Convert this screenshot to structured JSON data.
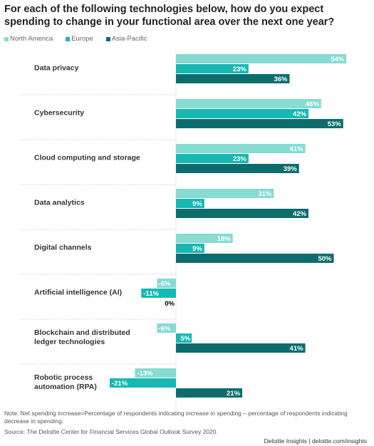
{
  "chart_data": {
    "type": "bar",
    "orientation": "horizontal",
    "title": "For each of the following technologies below, how do you expect spending to change in your functional area over the next one year?",
    "categories": [
      "Data privacy",
      "Cybersecurity",
      "Cloud computing and storage",
      "Data analytics",
      "Digital channels",
      "Artificial intelligence (AI)",
      "Blockchain and distributed\nledger technologies",
      "Robotic process\nautomation (RPA)"
    ],
    "series": [
      {
        "name": "North America",
        "color": "#86dbd2",
        "values": [
          54,
          46,
          41,
          31,
          18,
          -6,
          -6,
          -13
        ],
        "value_labels": [
          "54%",
          "46%",
          "41%",
          "31%",
          "18%",
          "-6%",
          "-6%",
          "-13%"
        ]
      },
      {
        "name": "Europe",
        "color": "#17b8b1",
        "values": [
          23,
          42,
          23,
          9,
          9,
          -11,
          5,
          -21
        ],
        "value_labels": [
          "23%",
          "42%",
          "23%",
          "9%",
          "9%",
          "-11%",
          "5%",
          "-21%"
        ]
      },
      {
        "name": "Asia-Pacific",
        "color": "#0d6d6e",
        "values": [
          36,
          53,
          39,
          42,
          50,
          0,
          41,
          21
        ],
        "value_labels": [
          "36%",
          "53%",
          "39%",
          "42%",
          "50%",
          "0%",
          "41%",
          "21%"
        ]
      }
    ],
    "note": "Note: Net spending increase=Percentage of respondents indicating increase in spending – percentage of respondents indicating decrease in spending.",
    "source": "Source: The Deloitte Center for Financial Services Global Outlook Survey 2020.",
    "footer": "Deloitte Insights | deloitte.com/insights"
  }
}
